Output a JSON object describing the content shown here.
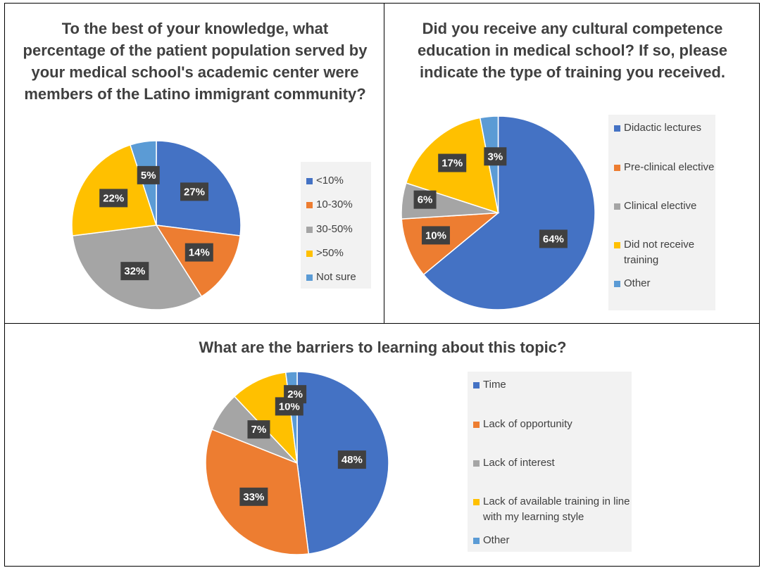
{
  "chart_data": [
    {
      "type": "pie",
      "title": "To the best of your knowledge, what percentage of the patient population served by your medical school's academic center were members of the Latino immigrant community?",
      "categories": [
        "<10%",
        "10-30%",
        "30-50%",
        ">50%",
        "Not sure"
      ],
      "values": [
        27,
        14,
        32,
        22,
        5
      ],
      "labels": [
        "27%",
        "14%",
        "32%",
        "22%",
        "5%"
      ],
      "colors": [
        "#4472c4",
        "#ed7d31",
        "#a5a5a5",
        "#ffc000",
        "#5b9bd5"
      ],
      "legend": "right"
    },
    {
      "type": "pie",
      "title": "Did you receive any cultural competence education in medical school? If so, please indicate the type of training you received.",
      "categories": [
        "Didactic lectures",
        "Pre-clinical elective",
        "Clinical elective",
        "Did not receive training",
        "Other"
      ],
      "values": [
        64,
        10,
        6,
        17,
        3
      ],
      "labels": [
        "64%",
        "10%",
        "6%",
        "17%",
        "3%"
      ],
      "colors": [
        "#4472c4",
        "#ed7d31",
        "#a5a5a5",
        "#ffc000",
        "#5b9bd5"
      ],
      "legend": "right"
    },
    {
      "type": "pie",
      "title": "What are the barriers to learning about this topic?",
      "categories": [
        "Time",
        "Lack of opportunity",
        "Lack of interest",
        "Lack of available training in line with my learning style",
        "Other"
      ],
      "values": [
        48,
        33,
        7,
        10,
        2
      ],
      "labels": [
        "48%",
        "33%",
        "7%",
        "10%",
        "2%"
      ],
      "colors": [
        "#4472c4",
        "#ed7d31",
        "#a5a5a5",
        "#ffc000",
        "#5b9bd5"
      ],
      "legend": "right"
    }
  ]
}
